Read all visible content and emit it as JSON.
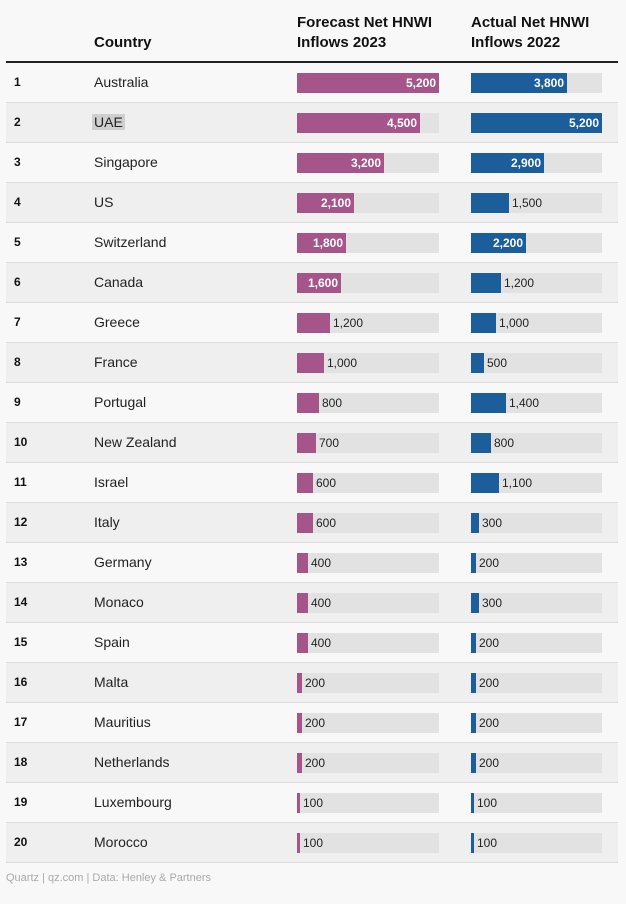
{
  "header": {
    "country": "Country",
    "forecast": [
      "Forecast Net HNWI",
      "Inflows 2023"
    ],
    "actual": [
      "Actual Net HNWI",
      "Inflows 2022"
    ]
  },
  "source": "Quartz | qz.com | Data: Henley & Partners",
  "colors": {
    "forecast": "#a6558a",
    "actual": "#1c5e9c",
    "track": "#e2e2e2"
  },
  "highlighted_country": "UAE",
  "chart_data": {
    "type": "bar",
    "orientation": "horizontal",
    "max_value": 5200,
    "categories": [
      "Australia",
      "UAE",
      "Singapore",
      "US",
      "Switzerland",
      "Canada",
      "Greece",
      "France",
      "Portugal",
      "New Zealand",
      "Israel",
      "Italy",
      "Germany",
      "Monaco",
      "Spain",
      "Malta",
      "Mauritius",
      "Netherlands",
      "Luxembourg",
      "Morocco"
    ],
    "ranks": [
      "1",
      "2",
      "3",
      "4",
      "5",
      "6",
      "7",
      "8",
      "9",
      "10",
      "11",
      "12",
      "13",
      "14",
      "15",
      "16",
      "17",
      "18",
      "19",
      "20"
    ],
    "series": [
      {
        "name": "Forecast Net HNWI Inflows 2023",
        "values": [
          5200,
          4500,
          3200,
          2100,
          1800,
          1600,
          1200,
          1000,
          800,
          700,
          600,
          600,
          400,
          400,
          400,
          200,
          200,
          200,
          100,
          100
        ]
      },
      {
        "name": "Actual Net HNWI Inflows 2022",
        "values": [
          3800,
          5200,
          2900,
          1500,
          2200,
          1200,
          1000,
          500,
          1400,
          800,
          1100,
          300,
          200,
          300,
          200,
          200,
          200,
          200,
          100,
          100
        ]
      }
    ]
  }
}
